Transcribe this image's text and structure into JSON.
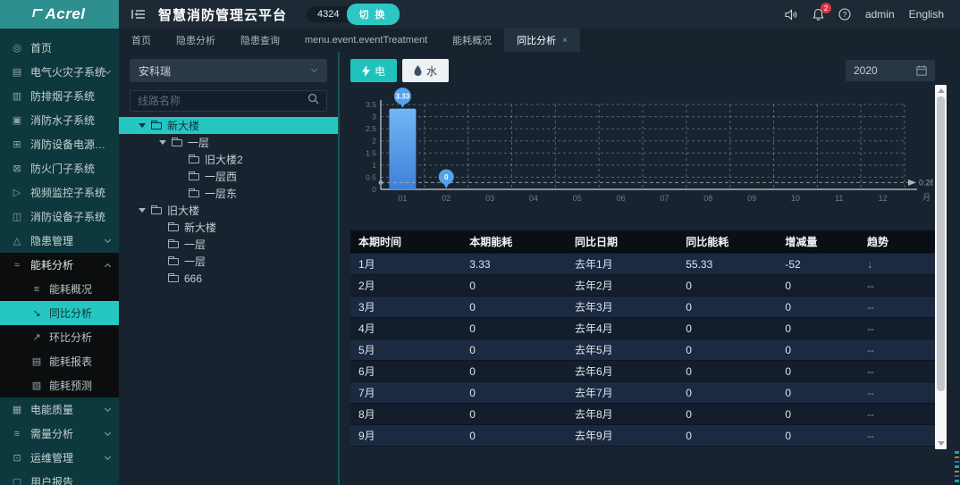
{
  "brand": {
    "logo": "Acrel"
  },
  "header": {
    "title": "智慧消防管理云平台",
    "badge_count": "4324",
    "switch_button": "切 换",
    "notification_count": "2",
    "username": "admin",
    "language": "English"
  },
  "tabs": [
    {
      "label": "首页",
      "active": false,
      "closable": false
    },
    {
      "label": "隐患分析",
      "active": false,
      "closable": false
    },
    {
      "label": "隐患查询",
      "active": false,
      "closable": false
    },
    {
      "label": "menu.event.eventTreatment",
      "active": false,
      "closable": false
    },
    {
      "label": "能耗概况",
      "active": false,
      "closable": false
    },
    {
      "label": "同比分析",
      "active": true,
      "closable": true
    }
  ],
  "sidebar": {
    "items": [
      {
        "label": "首页",
        "icon": "home-icon"
      },
      {
        "label": "电气火灾子系统",
        "icon": "electric-fire-icon",
        "chevron": "down"
      },
      {
        "label": "防排烟子系统",
        "icon": "smoke-icon"
      },
      {
        "label": "消防水子系统",
        "icon": "fire-water-icon"
      },
      {
        "label": "消防设备电源子系统",
        "icon": "power-icon"
      },
      {
        "label": "防火门子系统",
        "icon": "fire-door-icon"
      },
      {
        "label": "视频监控子系统",
        "icon": "video-icon"
      },
      {
        "label": "消防设备子系统",
        "icon": "device-icon"
      },
      {
        "label": "隐患管理",
        "icon": "hazard-icon",
        "chevron": "down"
      },
      {
        "label": "能耗分析",
        "icon": "energy-icon",
        "chevron": "up",
        "expanded": true,
        "children": [
          {
            "label": "能耗概况",
            "icon": "overview-icon",
            "active": false
          },
          {
            "label": "同比分析",
            "icon": "yoy-icon",
            "active": true
          },
          {
            "label": "环比分析",
            "icon": "mom-icon",
            "active": false
          },
          {
            "label": "能耗报表",
            "icon": "report-icon",
            "active": false
          },
          {
            "label": "能耗预测",
            "icon": "forecast-icon",
            "active": false
          }
        ]
      },
      {
        "label": "电能质量",
        "icon": "quality-icon",
        "chevron": "down"
      },
      {
        "label": "需量分析",
        "icon": "demand-icon",
        "chevron": "down"
      },
      {
        "label": "运维管理",
        "icon": "ops-icon",
        "chevron": "down"
      },
      {
        "label": "用户报告",
        "icon": "user-report-icon"
      }
    ]
  },
  "tree_panel": {
    "org_select": "安科瑞",
    "search_placeholder": "线路名称",
    "tree": [
      {
        "label": "新大楼",
        "level": 0,
        "caret": true,
        "selected": true
      },
      {
        "label": "一层",
        "level": 1,
        "caret": true,
        "selected": false
      },
      {
        "label": "旧大楼2",
        "level": 2,
        "caret": false,
        "selected": false
      },
      {
        "label": "一层西",
        "level": 2,
        "caret": false,
        "selected": false
      },
      {
        "label": "一层东",
        "level": 2,
        "caret": false,
        "selected": false
      },
      {
        "label": "旧大楼",
        "level": 0,
        "caret": true,
        "selected": false
      },
      {
        "label": "新大楼",
        "level": 1,
        "caret": false,
        "selected": false
      },
      {
        "label": "一层",
        "level": 1,
        "caret": false,
        "selected": false
      },
      {
        "label": "一层",
        "level": 1,
        "caret": false,
        "selected": false
      },
      {
        "label": "666",
        "level": 1,
        "caret": false,
        "selected": false
      }
    ]
  },
  "toolbar": {
    "electric_label": "电",
    "water_label": "水",
    "year": "2020"
  },
  "chart_data": {
    "type": "bar",
    "title": "",
    "categories": [
      "01",
      "02",
      "03",
      "04",
      "05",
      "06",
      "07",
      "08",
      "09",
      "10",
      "11",
      "12"
    ],
    "values": [
      3.33,
      0,
      0,
      0,
      0,
      0,
      0,
      0,
      0,
      0,
      0,
      0
    ],
    "xlabel": "",
    "ylabel": "",
    "x_unit": "月",
    "ylim": [
      0,
      3.5
    ],
    "ytick_step": 0.5,
    "grid": "dashed",
    "bar_color_top": "#72b7f4",
    "bar_color_bottom": "#3f7fd9",
    "mark_max": {
      "index": 0,
      "label": "3.33"
    },
    "mark_min": {
      "index": 1,
      "label": "0"
    },
    "average_line": {
      "value": 0.28,
      "label": "0.28"
    }
  },
  "table": {
    "columns": [
      "本期时间",
      "本期能耗",
      "同比日期",
      "同比能耗",
      "增减量",
      "趋势"
    ],
    "trend_down_glyph": "↓",
    "trend_none_glyph": "--",
    "rows": [
      {
        "cells": [
          "1月",
          "3.33",
          "去年1月",
          "55.33",
          "-52"
        ],
        "trend": "down"
      },
      {
        "cells": [
          "2月",
          "0",
          "去年2月",
          "0",
          "0"
        ],
        "trend": "none"
      },
      {
        "cells": [
          "3月",
          "0",
          "去年3月",
          "0",
          "0"
        ],
        "trend": "none"
      },
      {
        "cells": [
          "4月",
          "0",
          "去年4月",
          "0",
          "0"
        ],
        "trend": "none"
      },
      {
        "cells": [
          "5月",
          "0",
          "去年5月",
          "0",
          "0"
        ],
        "trend": "none"
      },
      {
        "cells": [
          "6月",
          "0",
          "去年6月",
          "0",
          "0"
        ],
        "trend": "none"
      },
      {
        "cells": [
          "7月",
          "0",
          "去年7月",
          "0",
          "0"
        ],
        "trend": "none"
      },
      {
        "cells": [
          "8月",
          "0",
          "去年8月",
          "0",
          "0"
        ],
        "trend": "none"
      },
      {
        "cells": [
          "9月",
          "0",
          "去年9月",
          "0",
          "0"
        ],
        "trend": "none"
      }
    ]
  },
  "colors": {
    "accent_teal": "#26c6c3",
    "bar_blue": "#4a8fe2",
    "notification_red": "#d9363e",
    "trend_green": "#49b364"
  }
}
